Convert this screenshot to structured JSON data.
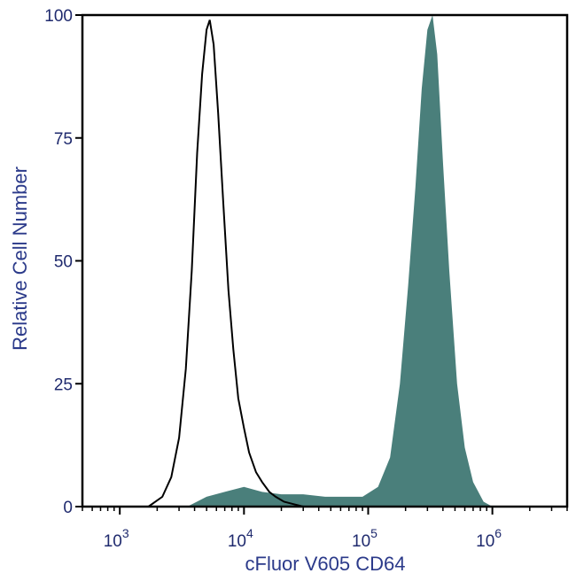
{
  "colors": {
    "filled_series": "#4a7f7b",
    "outline_series": "#000000",
    "axis_text": "#1f2a6e",
    "axis_title": "#2b3a8a"
  },
  "chart_data": {
    "type": "area",
    "title": "",
    "xlabel": "cFluor V605 CD64",
    "ylabel": "Relative Cell Number",
    "xscale": "log",
    "xlim": [
      500,
      4000000
    ],
    "ylim": [
      0,
      100
    ],
    "x_tick_values": [
      1000,
      10000,
      100000,
      1000000
    ],
    "x_tick_labels": [
      {
        "base": "10",
        "exp": "3"
      },
      {
        "base": "10",
        "exp": "4"
      },
      {
        "base": "10",
        "exp": "5"
      },
      {
        "base": "10",
        "exp": "6"
      }
    ],
    "y_ticks": [
      0,
      25,
      50,
      75,
      100
    ],
    "y_tick_labels": [
      "0",
      "25",
      "50",
      "75",
      "100"
    ],
    "grid": false,
    "series": [
      {
        "style": "outline",
        "x": [
          1700,
          2200,
          2600,
          3000,
          3400,
          3800,
          4200,
          4600,
          5000,
          5300,
          5700,
          6200,
          6800,
          7500,
          8200,
          9000,
          10000,
          11000,
          12500,
          14000,
          16000,
          18000,
          21000,
          25000,
          30000
        ],
        "y": [
          0,
          2,
          6,
          14,
          28,
          48,
          72,
          88,
          97,
          99,
          94,
          80,
          62,
          44,
          32,
          22,
          16,
          11,
          7,
          5,
          3,
          2,
          1,
          0.5,
          0
        ]
      },
      {
        "style": "filled",
        "x": [
          3500,
          5000,
          7000,
          10000,
          14000,
          20000,
          30000,
          45000,
          65000,
          90000,
          120000,
          150000,
          180000,
          210000,
          240000,
          270000,
          300000,
          330000,
          360000,
          400000,
          450000,
          520000,
          600000,
          700000,
          850000,
          1000000
        ],
        "y": [
          0,
          2,
          3,
          4,
          3,
          2.5,
          2.5,
          2,
          2,
          2,
          4,
          10,
          25,
          45,
          65,
          85,
          97,
          100,
          92,
          70,
          48,
          25,
          12,
          5,
          1,
          0
        ]
      }
    ]
  }
}
